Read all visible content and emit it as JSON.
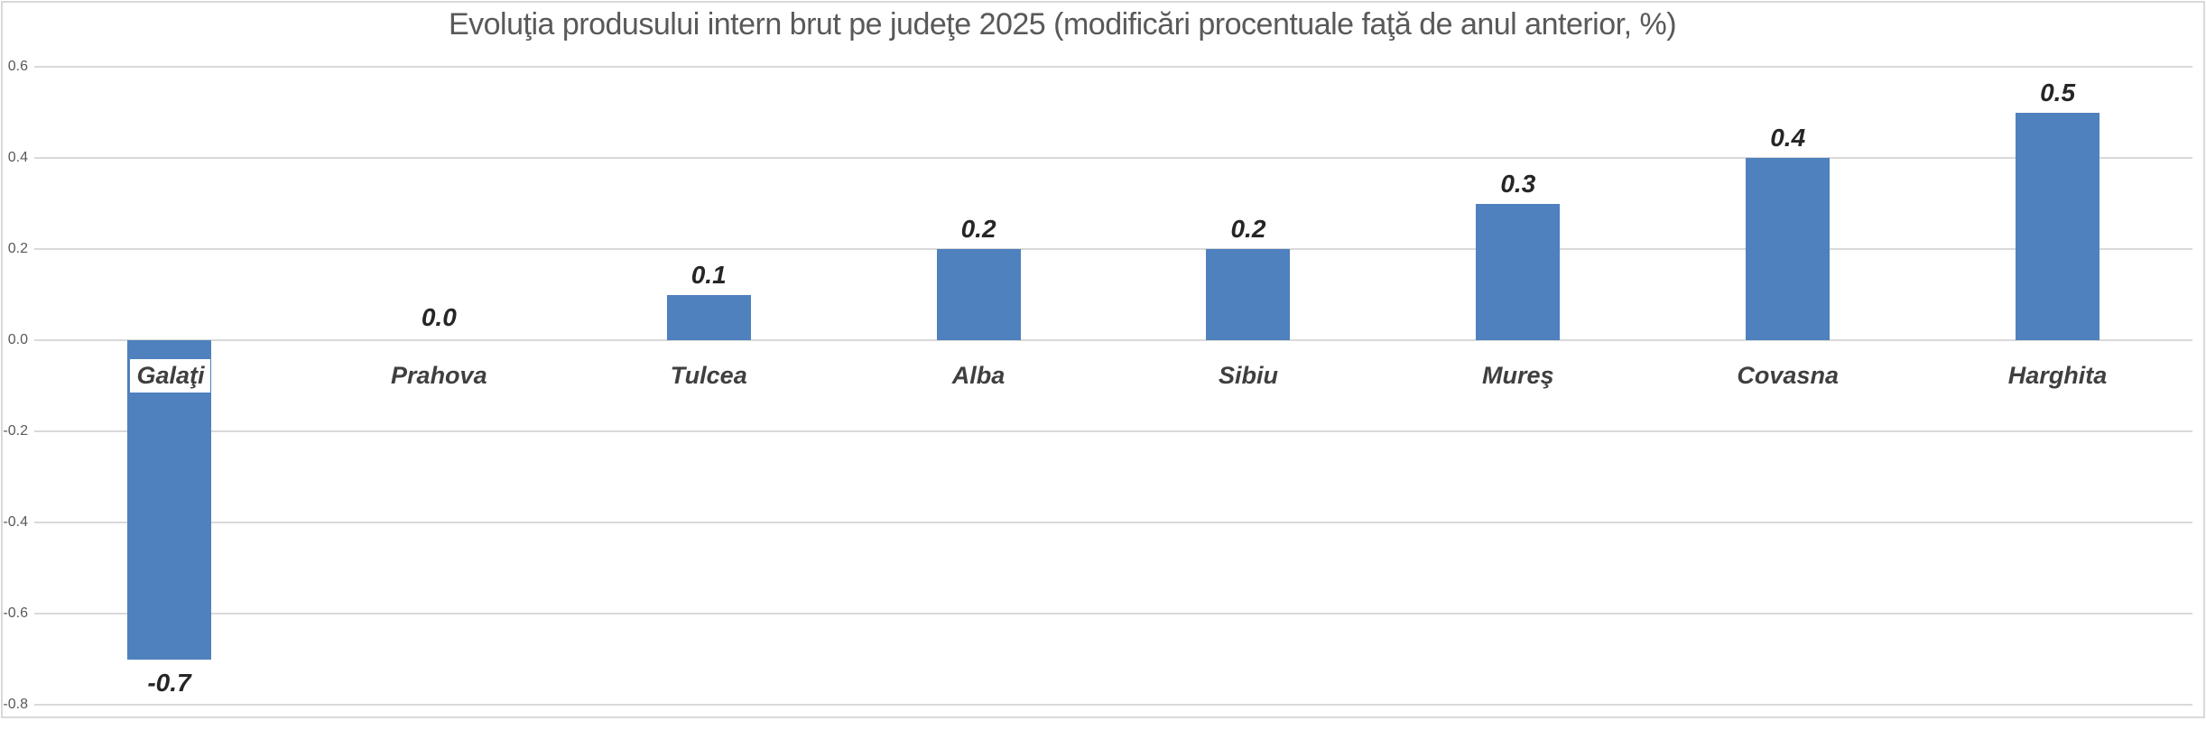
{
  "chart_data": {
    "type": "bar",
    "title": "Evoluţia produsului intern brut pe judeţe 2025 (modificări procentuale faţă de anul anterior, %)",
    "categories": [
      "Galaţi",
      "Prahova",
      "Tulcea",
      "Alba",
      "Sibiu",
      "Mureş",
      "Covasna",
      "Harghita"
    ],
    "values": [
      -0.7,
      0.0,
      0.1,
      0.2,
      0.2,
      0.3,
      0.4,
      0.5
    ],
    "value_labels": [
      "-0.7",
      "0.0",
      "0.1",
      "0.2",
      "0.2",
      "0.3",
      "0.4",
      "0.5"
    ],
    "xlabel": "",
    "ylabel": "",
    "ylim": [
      -0.8,
      0.6
    ],
    "yticks": [
      0.6,
      0.4,
      0.2,
      0.0,
      -0.2,
      -0.4,
      -0.6,
      -0.8
    ],
    "ytick_labels": [
      "0.6",
      "0.4",
      "0.2",
      "0.0",
      "-0.2",
      "-0.4",
      "-0.6",
      "-0.8"
    ],
    "grid": true,
    "legend_position": "none",
    "bar_color": "#4e81bd",
    "gridline_color": "#d9d9d9",
    "frame_color": "#d9d9d9",
    "title_color": "#595959",
    "tick_label_color": "#595959",
    "category_label_color": "#3f3f3f",
    "value_label_color": "#262626",
    "boxed_category_index": 0,
    "boxed_category_bg": "#ffffff"
  }
}
